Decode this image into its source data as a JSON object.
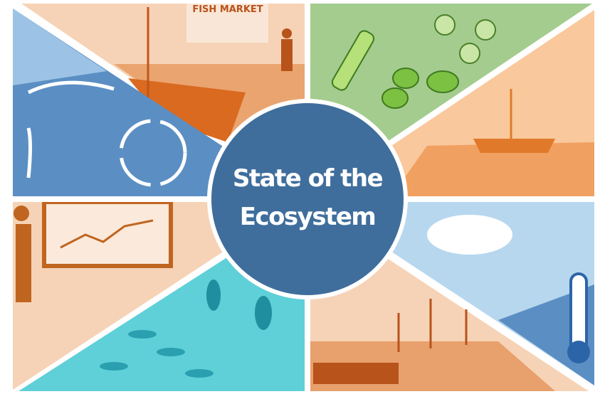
{
  "center": {
    "title_lines": [
      "State of the",
      "Ecosystem"
    ]
  },
  "panels": {
    "fish_market_sign": "FISH MARKET"
  }
}
